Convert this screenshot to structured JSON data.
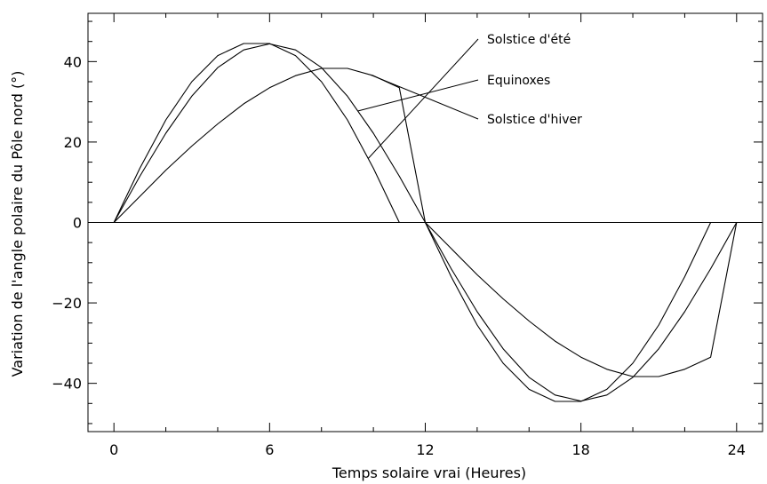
{
  "chart_data": {
    "type": "line",
    "title": "",
    "xlabel": "Temps solaire vrai (Heures)",
    "ylabel": "Variation de l'angle polaire du Pôle nord (°)",
    "xlim": [
      -1,
      25
    ],
    "ylim": [
      -52,
      52
    ],
    "xticks": [
      0,
      6,
      12,
      18,
      24
    ],
    "yticks": [
      -40,
      -20,
      0,
      20,
      40
    ],
    "grid": false,
    "series": [
      {
        "name": "Solstice d'été",
        "x": [
          0,
          1,
          2,
          3,
          4,
          5,
          6,
          7,
          8,
          9,
          10,
          11,
          12,
          13,
          14,
          15,
          16,
          17,
          18,
          19,
          20,
          21,
          22,
          23,
          24
        ],
        "y": [
          0,
          13.5,
          25.5,
          35.0,
          41.5,
          44.5,
          44.5,
          41.5,
          35.0,
          25.5,
          13.5,
          0,
          0,
          -13.5,
          -25.5,
          -35.0,
          -41.5,
          -44.5,
          -44.5,
          -41.5,
          -35.0,
          -25.5,
          -13.5,
          0,
          0
        ]
      },
      {
        "name": "Equinoxes",
        "x": [
          0,
          1,
          2,
          3,
          4,
          5,
          6,
          7,
          8,
          9,
          10,
          11,
          12,
          13,
          14,
          15,
          16,
          17,
          18,
          19,
          20,
          21,
          22,
          23,
          24
        ],
        "y": [
          0,
          11.5,
          22.2,
          31.4,
          38.5,
          42.9,
          44.4,
          42.9,
          38.5,
          31.4,
          22.2,
          11.5,
          0,
          -11.5,
          -22.2,
          -31.4,
          -38.5,
          -42.9,
          -44.4,
          -42.9,
          -38.5,
          -31.4,
          -22.2,
          -11.5,
          0
        ]
      },
      {
        "name": "Solstice d'hiver",
        "x": [
          0,
          1,
          2,
          3,
          4,
          5,
          6,
          7,
          8,
          9,
          10,
          11,
          12,
          13,
          14,
          15,
          16,
          17,
          18,
          19,
          20,
          21,
          22,
          23,
          24
        ],
        "y": [
          0,
          6.5,
          13.0,
          19.0,
          24.5,
          29.5,
          33.5,
          36.5,
          38.3,
          38.3,
          36.5,
          33.5,
          0,
          -6.5,
          -13.0,
          -19.0,
          -24.5,
          -29.5,
          -33.5,
          -36.5,
          -38.3,
          -38.3,
          -36.5,
          -33.5,
          0
        ]
      }
    ],
    "annotations": [
      {
        "text": "Solstice d'été",
        "series": 0,
        "anchor_x": 9.8
      },
      {
        "text": "Equinoxes",
        "series": 1,
        "anchor_x": 9.4
      },
      {
        "text": "Solstice d'hiver",
        "series": 2,
        "anchor_x": 9.9
      }
    ]
  }
}
